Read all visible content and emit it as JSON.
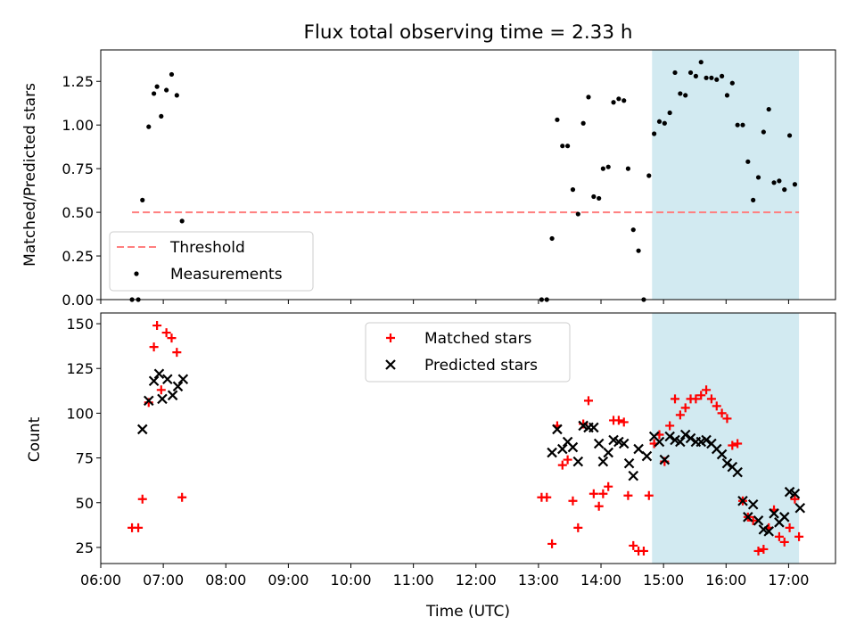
{
  "title": "Flux total observing time = 2.33 h",
  "colors": {
    "threshold": "#ff7f7f",
    "measurement": "#000000",
    "matched": "#ff0000",
    "predicted": "#000000",
    "span": "#add8e6"
  },
  "chart_data": [
    {
      "type": "scatter",
      "ylabel": "Matched/Predicted stars",
      "xlim": [
        "06:00",
        "17:45"
      ],
      "ylim": [
        0,
        1.43
      ],
      "yticks": [
        "0.00",
        "0.25",
        "0.50",
        "0.75",
        "1.00",
        "1.25"
      ],
      "highlight_span": [
        "14:49",
        "17:10"
      ],
      "legend_position": "lower-left",
      "threshold": {
        "name": "Threshold",
        "y": 0.5,
        "x_range": [
          "06:30",
          "17:10"
        ]
      },
      "series": [
        {
          "name": "Measurements",
          "points": [
            [
              "06:30",
              0.0
            ],
            [
              "06:36",
              0.0
            ],
            [
              "06:40",
              0.57
            ],
            [
              "06:46",
              0.99
            ],
            [
              "06:51",
              1.18
            ],
            [
              "06:54",
              1.22
            ],
            [
              "06:58",
              1.05
            ],
            [
              "07:03",
              1.2
            ],
            [
              "07:08",
              1.29
            ],
            [
              "07:13",
              1.17
            ],
            [
              "07:18",
              0.45
            ],
            [
              "13:03",
              0.0
            ],
            [
              "13:08",
              0.0
            ],
            [
              "13:13",
              0.35
            ],
            [
              "13:18",
              1.03
            ],
            [
              "13:23",
              0.88
            ],
            [
              "13:28",
              0.88
            ],
            [
              "13:33",
              0.63
            ],
            [
              "13:38",
              0.49
            ],
            [
              "13:43",
              1.01
            ],
            [
              "13:48",
              1.16
            ],
            [
              "13:53",
              0.59
            ],
            [
              "13:58",
              0.58
            ],
            [
              "14:02",
              0.75
            ],
            [
              "14:07",
              0.76
            ],
            [
              "14:12",
              1.13
            ],
            [
              "14:17",
              1.15
            ],
            [
              "14:22",
              1.14
            ],
            [
              "14:26",
              0.75
            ],
            [
              "14:31",
              0.4
            ],
            [
              "14:36",
              0.28
            ],
            [
              "14:41",
              0.0
            ],
            [
              "14:46",
              0.71
            ],
            [
              "14:51",
              0.95
            ],
            [
              "14:56",
              1.02
            ],
            [
              "15:01",
              1.01
            ],
            [
              "15:06",
              1.07
            ],
            [
              "15:11",
              1.3
            ],
            [
              "15:16",
              1.18
            ],
            [
              "15:21",
              1.17
            ],
            [
              "15:26",
              1.3
            ],
            [
              "15:31",
              1.28
            ],
            [
              "15:36",
              1.36
            ],
            [
              "15:41",
              1.27
            ],
            [
              "15:46",
              1.27
            ],
            [
              "15:51",
              1.26
            ],
            [
              "15:56",
              1.28
            ],
            [
              "16:01",
              1.17
            ],
            [
              "16:06",
              1.24
            ],
            [
              "16:11",
              1.0
            ],
            [
              "16:16",
              1.0
            ],
            [
              "16:21",
              0.79
            ],
            [
              "16:26",
              0.57
            ],
            [
              "16:31",
              0.7
            ],
            [
              "16:36",
              0.96
            ],
            [
              "16:41",
              1.09
            ],
            [
              "16:46",
              0.67
            ],
            [
              "16:51",
              0.68
            ],
            [
              "16:56",
              0.63
            ],
            [
              "17:01",
              0.94
            ],
            [
              "17:06",
              0.66
            ]
          ]
        }
      ]
    },
    {
      "type": "scatter",
      "xlabel": "Time (UTC)",
      "ylabel": "Count",
      "xlim": [
        "06:00",
        "17:45"
      ],
      "ylim": [
        16,
        156
      ],
      "xticks": [
        "06:00",
        "07:00",
        "08:00",
        "09:00",
        "10:00",
        "11:00",
        "12:00",
        "13:00",
        "14:00",
        "15:00",
        "16:00",
        "17:00"
      ],
      "yticks": [
        "25",
        "50",
        "75",
        "100",
        "125",
        "150"
      ],
      "highlight_span": [
        "14:49",
        "17:10"
      ],
      "legend_position": "top-center",
      "series": [
        {
          "name": "Matched stars",
          "marker": "plus",
          "points": [
            [
              "06:30",
              36
            ],
            [
              "06:36",
              36
            ],
            [
              "06:40",
              52
            ],
            [
              "06:46",
              106
            ],
            [
              "06:51",
              137
            ],
            [
              "06:54",
              149
            ],
            [
              "06:58",
              113
            ],
            [
              "07:03",
              145
            ],
            [
              "07:08",
              142
            ],
            [
              "07:13",
              134
            ],
            [
              "07:18",
              53
            ],
            [
              "13:03",
              53
            ],
            [
              "13:08",
              53
            ],
            [
              "13:13",
              27
            ],
            [
              "13:18",
              93
            ],
            [
              "13:23",
              71
            ],
            [
              "13:28",
              74
            ],
            [
              "13:33",
              51
            ],
            [
              "13:38",
              36
            ],
            [
              "13:43",
              94
            ],
            [
              "13:48",
              107
            ],
            [
              "13:53",
              55
            ],
            [
              "13:58",
              48
            ],
            [
              "14:02",
              55
            ],
            [
              "14:07",
              59
            ],
            [
              "14:12",
              96
            ],
            [
              "14:17",
              96
            ],
            [
              "14:22",
              95
            ],
            [
              "14:26",
              54
            ],
            [
              "14:31",
              26
            ],
            [
              "14:36",
              23
            ],
            [
              "14:41",
              23
            ],
            [
              "14:46",
              54
            ],
            [
              "14:51",
              83
            ],
            [
              "14:56",
              88
            ],
            [
              "15:01",
              73
            ],
            [
              "15:06",
              93
            ],
            [
              "15:11",
              108
            ],
            [
              "15:16",
              99
            ],
            [
              "15:21",
              103
            ],
            [
              "15:26",
              108
            ],
            [
              "15:31",
              108
            ],
            [
              "15:36",
              110
            ],
            [
              "15:41",
              113
            ],
            [
              "15:46",
              108
            ],
            [
              "15:51",
              104
            ],
            [
              "15:56",
              100
            ],
            [
              "16:01",
              97
            ],
            [
              "16:06",
              82
            ],
            [
              "16:11",
              83
            ],
            [
              "16:16",
              51
            ],
            [
              "16:21",
              42
            ],
            [
              "16:26",
              40
            ],
            [
              "16:31",
              23
            ],
            [
              "16:36",
              24
            ],
            [
              "16:41",
              36
            ],
            [
              "16:46",
              46
            ],
            [
              "16:51",
              31
            ],
            [
              "16:56",
              28
            ],
            [
              "17:01",
              36
            ],
            [
              "17:06",
              52
            ],
            [
              "17:10",
              31
            ]
          ]
        },
        {
          "name": "Predicted stars",
          "marker": "x",
          "points": [
            [
              "06:40",
              91
            ],
            [
              "06:46",
              107
            ],
            [
              "06:51",
              118
            ],
            [
              "06:56",
              122
            ],
            [
              "06:59",
              108
            ],
            [
              "07:04",
              119
            ],
            [
              "07:09",
              110
            ],
            [
              "07:14",
              115
            ],
            [
              "07:19",
              119
            ],
            [
              "13:13",
              78
            ],
            [
              "13:18",
              91
            ],
            [
              "13:23",
              80
            ],
            [
              "13:28",
              84
            ],
            [
              "13:33",
              81
            ],
            [
              "13:38",
              73
            ],
            [
              "13:43",
              93
            ],
            [
              "13:48",
              92
            ],
            [
              "13:53",
              92
            ],
            [
              "13:58",
              83
            ],
            [
              "14:02",
              73
            ],
            [
              "14:07",
              78
            ],
            [
              "14:12",
              85
            ],
            [
              "14:17",
              84
            ],
            [
              "14:22",
              83
            ],
            [
              "14:27",
              72
            ],
            [
              "14:31",
              65
            ],
            [
              "14:36",
              80
            ],
            [
              "14:44",
              76
            ],
            [
              "14:51",
              87
            ],
            [
              "14:56",
              84
            ],
            [
              "15:01",
              74
            ],
            [
              "15:06",
              87
            ],
            [
              "15:11",
              85
            ],
            [
              "15:16",
              84
            ],
            [
              "15:21",
              88
            ],
            [
              "15:26",
              86
            ],
            [
              "15:31",
              84
            ],
            [
              "15:36",
              84
            ],
            [
              "15:41",
              85
            ],
            [
              "15:46",
              83
            ],
            [
              "15:51",
              80
            ],
            [
              "15:56",
              77
            ],
            [
              "16:01",
              72
            ],
            [
              "16:06",
              70
            ],
            [
              "16:11",
              67
            ],
            [
              "16:16",
              51
            ],
            [
              "16:21",
              42
            ],
            [
              "16:26",
              49
            ],
            [
              "16:31",
              40
            ],
            [
              "16:36",
              35
            ],
            [
              "16:41",
              34
            ],
            [
              "16:46",
              44
            ],
            [
              "16:51",
              39
            ],
            [
              "16:56",
              42
            ],
            [
              "17:01",
              56
            ],
            [
              "17:06",
              55
            ],
            [
              "17:11",
              47
            ]
          ]
        }
      ]
    }
  ]
}
